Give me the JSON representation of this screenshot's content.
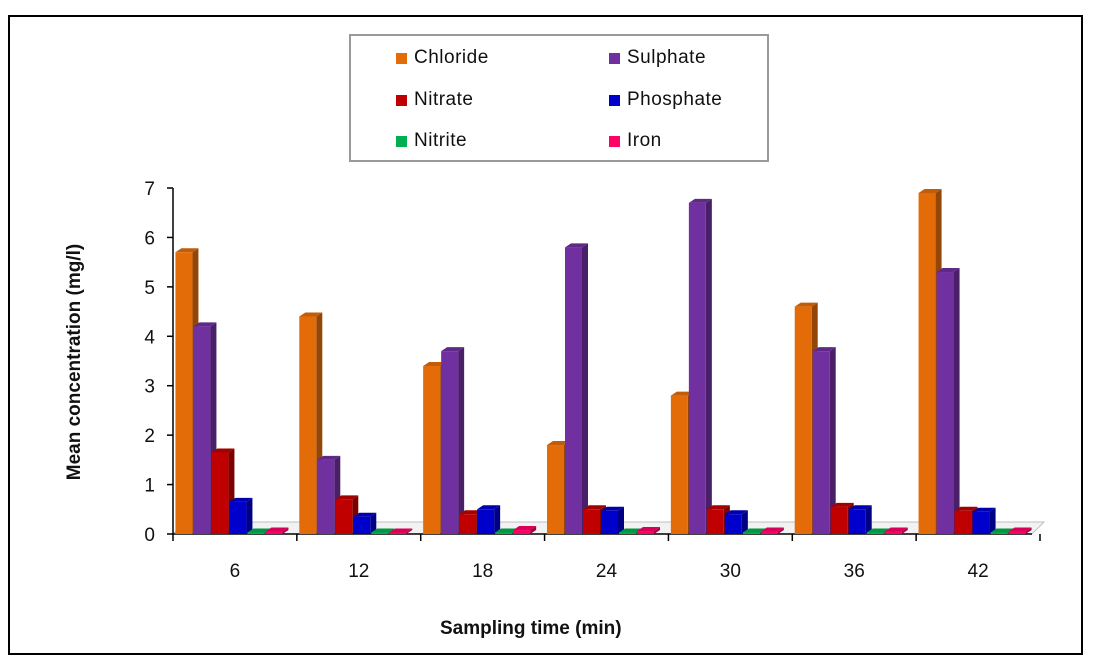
{
  "chart_data": {
    "type": "bar",
    "title": "",
    "xlabel": "Sampling time (min)",
    "ylabel": "Mean concentration (mg/l)",
    "categories": [
      "6",
      "12",
      "18",
      "24",
      "30",
      "36",
      "42"
    ],
    "ylim": [
      0,
      7
    ],
    "yticks": [
      "0",
      "1",
      "2",
      "3",
      "4",
      "5",
      "6",
      "7"
    ],
    "legend_position": "top-center",
    "series": [
      {
        "name": "Chloride",
        "color": "#E36C09",
        "values": [
          5.7,
          4.4,
          3.4,
          1.8,
          2.8,
          4.6,
          6.9
        ]
      },
      {
        "name": "Sulphate",
        "color": "#7030A0",
        "values": [
          4.2,
          1.5,
          3.7,
          5.8,
          6.7,
          3.7,
          5.3
        ]
      },
      {
        "name": "Nitrate",
        "color": "#C00000",
        "values": [
          1.65,
          0.7,
          0.4,
          0.5,
          0.5,
          0.55,
          0.47
        ]
      },
      {
        "name": "Phosphate",
        "color": "#0000CC",
        "values": [
          0.65,
          0.35,
          0.5,
          0.47,
          0.4,
          0.5,
          0.45
        ]
      },
      {
        "name": "Nitrite",
        "color": "#00B050",
        "values": [
          0.02,
          0.01,
          0.02,
          0.02,
          0.02,
          0.02,
          0.02
        ]
      },
      {
        "name": "Iron",
        "color": "#FF0066",
        "values": [
          0.05,
          0.03,
          0.08,
          0.06,
          0.05,
          0.05,
          0.05
        ]
      }
    ]
  }
}
